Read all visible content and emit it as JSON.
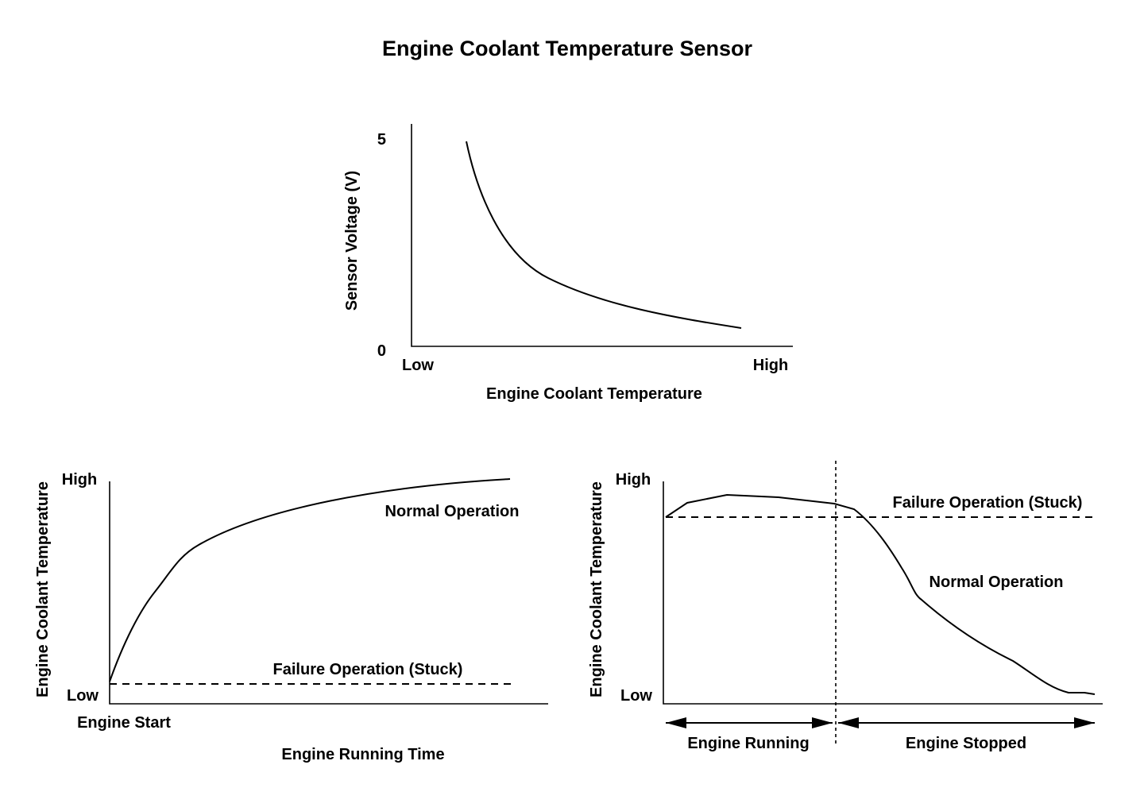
{
  "title": "Engine Coolant Temperature Sensor",
  "top_chart": {
    "ylabel": "Sensor Voltage (V)",
    "y_tick_top": "5",
    "y_tick_bottom": "0",
    "x_tick_left": "Low",
    "x_tick_right": "High",
    "xlabel": "Engine Coolant Temperature"
  },
  "left_chart": {
    "ylabel": "Engine Coolant Temperature",
    "y_tick_top": "High",
    "y_tick_bottom": "Low",
    "x_origin_label": "Engine Start",
    "xlabel": "Engine Running Time",
    "normal_label": "Normal Operation",
    "failure_label": "Failure Operation (Stuck)"
  },
  "right_chart": {
    "ylabel": "Engine Coolant Temperature",
    "y_tick_top": "High",
    "y_tick_bottom": "Low",
    "failure_label": "Failure Operation (Stuck)",
    "normal_label": "Normal Operation",
    "running_label": "Engine Running",
    "stopped_label": "Engine Stopped"
  }
}
